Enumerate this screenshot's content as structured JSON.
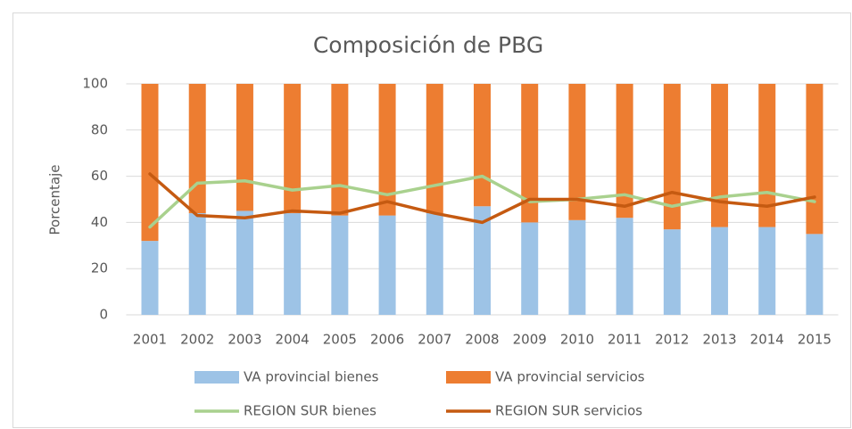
{
  "chart_data": {
    "type": "bar",
    "stacked": true,
    "title": "Composición de PBG",
    "y_label": "Porcentaje",
    "categories": [
      "2001",
      "2002",
      "2003",
      "2004",
      "2005",
      "2006",
      "2007",
      "2008",
      "2009",
      "2010",
      "2011",
      "2012",
      "2013",
      "2014",
      "2015"
    ],
    "series": [
      {
        "name": "VA provincial bienes",
        "type": "bar",
        "color": "#9dc3e6",
        "values": [
          32,
          44,
          45,
          44,
          43,
          43,
          44,
          47,
          40,
          41,
          42,
          37,
          38,
          38,
          35
        ]
      },
      {
        "name": "VA provincial servicios",
        "type": "bar",
        "color": "#ed7d31",
        "values": [
          68,
          56,
          55,
          56,
          57,
          57,
          56,
          53,
          60,
          59,
          58,
          63,
          62,
          62,
          65
        ]
      },
      {
        "name": "REGION SUR bienes",
        "type": "line",
        "color": "#a9d18e",
        "values": [
          38,
          57,
          58,
          54,
          56,
          52,
          56,
          60,
          49,
          50,
          52,
          47,
          51,
          53,
          49
        ]
      },
      {
        "name": "REGION SUR servicios",
        "type": "line",
        "color": "#c55a11",
        "values": [
          61,
          43,
          42,
          45,
          44,
          49,
          44,
          40,
          50,
          50,
          47,
          53,
          49,
          47,
          51
        ]
      }
    ],
    "ylim": [
      0,
      100
    ],
    "yticks": [
      0,
      20,
      40,
      60,
      80,
      100
    ],
    "grid": true
  }
}
